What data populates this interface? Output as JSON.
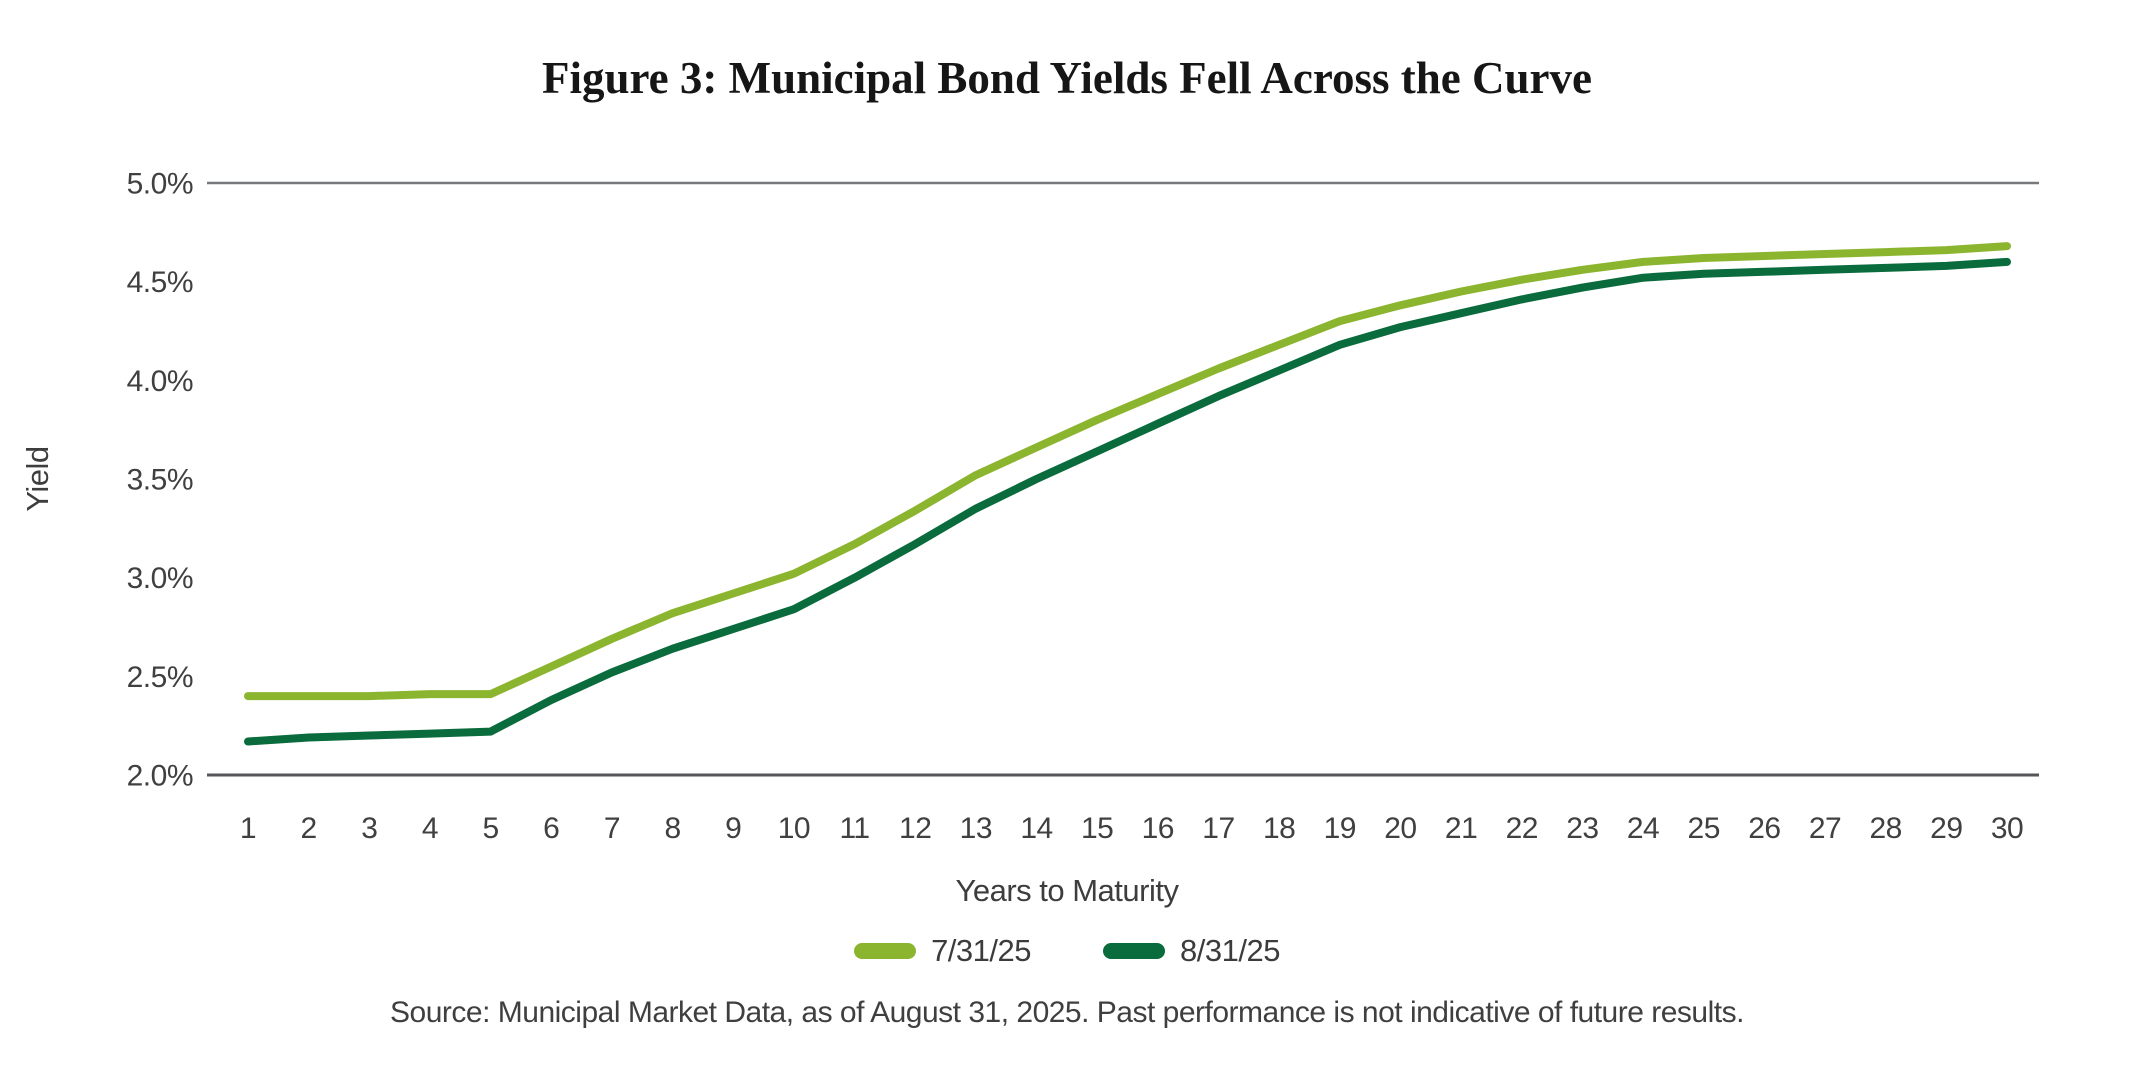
{
  "title": "Figure 3: Municipal Bond Yields Fell Across the Curve",
  "source_note": "Source: Municipal Market Data, as of August 31, 2025. Past performance is not indicative of future results.",
  "colors": {
    "series1": "#8CB52F",
    "series2": "#0A6B3C",
    "grid_top_line": "#77787B",
    "axis_bottom_line": "#55565A",
    "tick_text": "#404040",
    "title_text": "#161616"
  },
  "legend": {
    "items": [
      {
        "label": "7/31/25",
        "color": "#8CB52F"
      },
      {
        "label": "8/31/25",
        "color": "#0A6B3C"
      }
    ],
    "position": "bottom-center"
  },
  "chart_data": {
    "type": "line",
    "title": "Figure 3: Municipal Bond Yields Fell Across the Curve",
    "xlabel": "Years to Maturity",
    "ylabel": "Yield",
    "x": [
      1,
      2,
      3,
      4,
      5,
      6,
      7,
      8,
      9,
      10,
      11,
      12,
      13,
      14,
      15,
      16,
      17,
      18,
      19,
      20,
      21,
      22,
      23,
      24,
      25,
      26,
      27,
      28,
      29,
      30
    ],
    "ylim": [
      2.0,
      5.0
    ],
    "y_ticks": [
      "5.0%",
      "4.5%",
      "4.0%",
      "3.5%",
      "3.0%",
      "2.5%",
      "2.0%"
    ],
    "grid": "horizontal lines at top (5.0%) and bottom (2.0%) only",
    "legend_position": "bottom",
    "series": [
      {
        "name": "7/31/25",
        "color": "#8CB52F",
        "values": [
          2.4,
          2.4,
          2.4,
          2.41,
          2.41,
          2.55,
          2.69,
          2.82,
          2.92,
          3.02,
          3.17,
          3.34,
          3.52,
          3.66,
          3.8,
          3.93,
          4.06,
          4.18,
          4.3,
          4.38,
          4.45,
          4.51,
          4.56,
          4.6,
          4.62,
          4.63,
          4.64,
          4.65,
          4.66,
          4.68
        ]
      },
      {
        "name": "8/31/25",
        "color": "#0A6B3C",
        "values": [
          2.17,
          2.19,
          2.2,
          2.21,
          2.22,
          2.38,
          2.52,
          2.64,
          2.74,
          2.84,
          3.0,
          3.17,
          3.35,
          3.5,
          3.64,
          3.78,
          3.92,
          4.05,
          4.18,
          4.27,
          4.34,
          4.41,
          4.47,
          4.52,
          4.54,
          4.55,
          4.56,
          4.57,
          4.58,
          4.6
        ]
      }
    ]
  }
}
